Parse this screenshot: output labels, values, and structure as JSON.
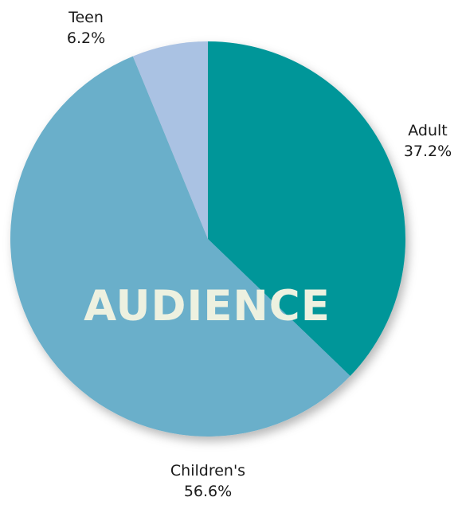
{
  "chart_data": {
    "type": "pie",
    "title": "AUDIENCE",
    "start_angle_deg": 0,
    "direction": "clockwise",
    "slices": [
      {
        "label": "Adult",
        "value": 37.2,
        "display": "37.2%",
        "color": "#009699"
      },
      {
        "label": "Children's",
        "value": 56.6,
        "display": "56.6%",
        "color": "#6aafca"
      },
      {
        "label": "Teen",
        "value": 6.2,
        "display": "6.2%",
        "color": "#aac2e3"
      }
    ]
  }
}
